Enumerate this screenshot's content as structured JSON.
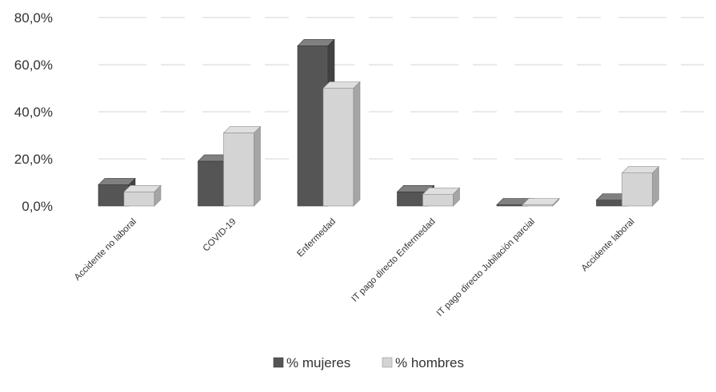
{
  "chart_data": {
    "type": "bar",
    "subtype": "3d-clustered-column",
    "categories": [
      "Accidente no laboral",
      "COVID-19",
      "Enfermedad",
      "IT pago directo Enfermedad",
      "IT pago directo Jubilación parcial",
      "Accidente laboral"
    ],
    "series": [
      {
        "name": "% mujeres",
        "values": [
          9.0,
          19.0,
          68.0,
          6.0,
          0.5,
          2.5
        ],
        "color": "#555555"
      },
      {
        "name": "% hombres",
        "values": [
          6.0,
          31.0,
          50.0,
          5.0,
          0.5,
          14.0
        ],
        "color": "#d4d4d4"
      }
    ],
    "yticks": [
      "0,0%",
      "20,0%",
      "40,0%",
      "60,0%",
      "80,0%"
    ],
    "ylim": [
      0,
      80
    ],
    "grid": true,
    "legend": "bottom",
    "title": "",
    "xlabel": "",
    "ylabel": ""
  }
}
